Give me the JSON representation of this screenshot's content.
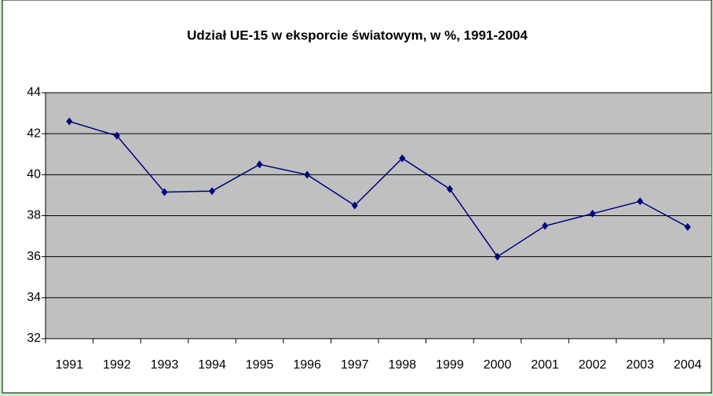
{
  "chart_data": {
    "type": "line",
    "title": "Udział UE-15 w eksporcie światowym, w %, 1991-2004",
    "categories": [
      "1991",
      "1992",
      "1993",
      "1994",
      "1995",
      "1996",
      "1997",
      "1998",
      "1999",
      "2000",
      "2001",
      "2002",
      "2003",
      "2004"
    ],
    "series": [
      {
        "name": "Udział UE-15",
        "color": "#000080",
        "values": [
          42.6,
          41.9,
          39.15,
          39.2,
          40.5,
          40.0,
          38.5,
          40.8,
          39.3,
          36.0,
          37.5,
          38.1,
          38.7,
          37.45
        ]
      }
    ],
    "ylim": [
      32,
      44
    ],
    "yticks": [
      32,
      34,
      36,
      38,
      40,
      42,
      44
    ],
    "grid": true,
    "plot_background": "#c0c0c0"
  }
}
